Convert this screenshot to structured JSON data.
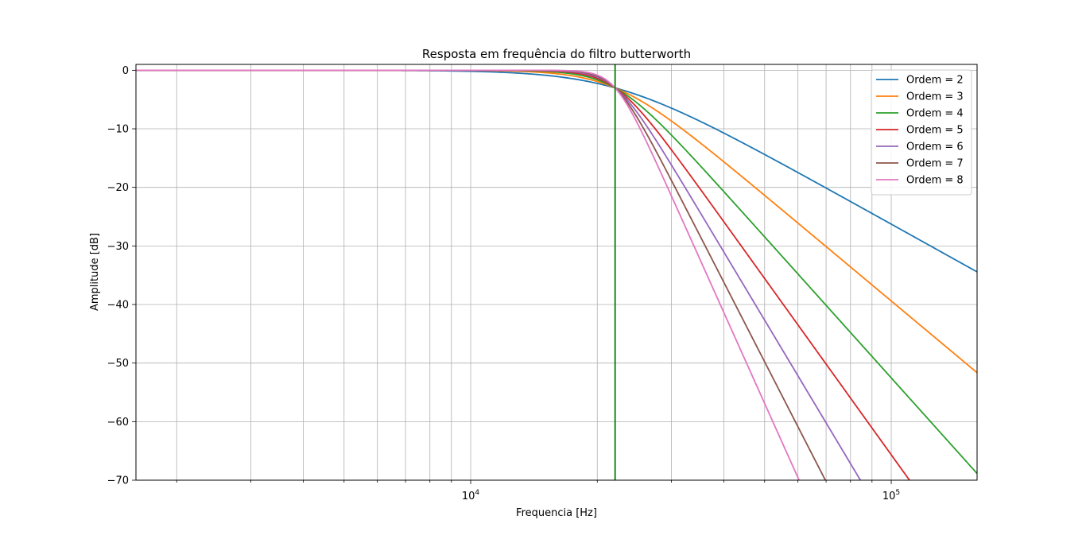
{
  "chart_data": {
    "type": "line",
    "title": "Resposta em frequência do filtro butterworth",
    "xlabel": "Frequencia [Hz]",
    "ylabel": "Amplitude [dB]",
    "x_scale": "log",
    "xlim": [
      1600,
      160000
    ],
    "ylim": [
      -70,
      1
    ],
    "grid": true,
    "legend_position": "top-right",
    "x_major_ticks": [
      {
        "value": 10000,
        "base": "10",
        "exp": "4"
      },
      {
        "value": 100000,
        "base": "10",
        "exp": "5"
      }
    ],
    "y_ticks": [
      {
        "value": 0,
        "label": "0"
      },
      {
        "value": -10,
        "label": "−10"
      },
      {
        "value": -20,
        "label": "−20"
      },
      {
        "value": -30,
        "label": "−30"
      },
      {
        "value": -40,
        "label": "−40"
      },
      {
        "value": -50,
        "label": "−50"
      },
      {
        "value": -60,
        "label": "−60"
      },
      {
        "value": -70,
        "label": "−70"
      }
    ],
    "cutoff_frequency": 22050,
    "cutoff_color": "#008000",
    "series": [
      {
        "name": "Ordem = 2",
        "order": 2,
        "color": "#1f77b4"
      },
      {
        "name": "Ordem = 3",
        "order": 3,
        "color": "#ff7f0e"
      },
      {
        "name": "Ordem = 4",
        "order": 4,
        "color": "#2ca02c"
      },
      {
        "name": "Ordem = 5",
        "order": 5,
        "color": "#d62728"
      },
      {
        "name": "Ordem = 6",
        "order": 6,
        "color": "#9467bd"
      },
      {
        "name": "Ordem = 7",
        "order": 7,
        "color": "#8c564b"
      },
      {
        "name": "Ordem = 8",
        "order": 8,
        "color": "#e377c2"
      }
    ]
  }
}
